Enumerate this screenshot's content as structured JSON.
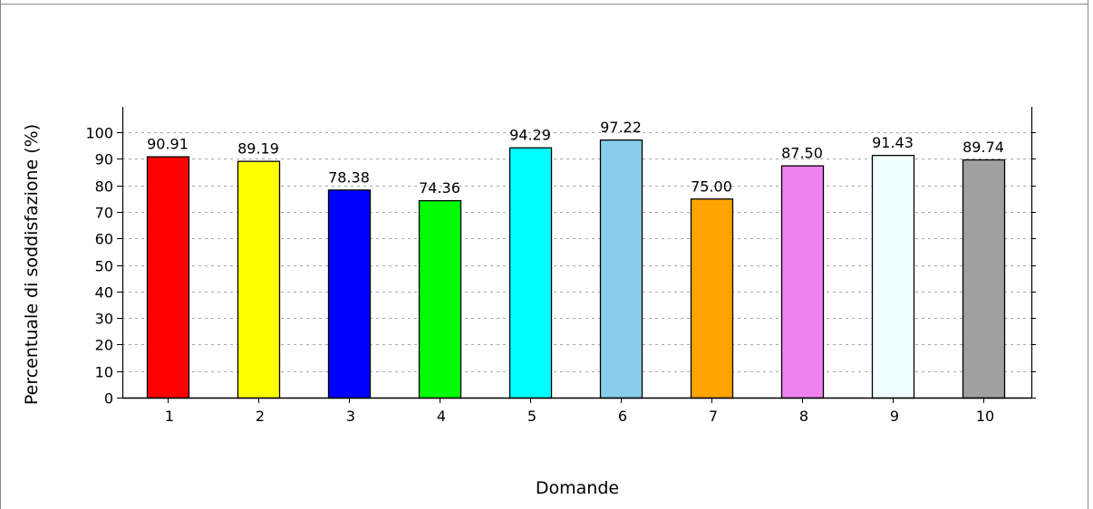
{
  "chart_data": {
    "type": "bar",
    "title": "",
    "xlabel": "Domande",
    "ylabel": "Percentuale di soddisfazione (%)",
    "ylim": [
      0,
      100
    ],
    "yticks": [
      0,
      10,
      20,
      30,
      40,
      50,
      60,
      70,
      80,
      90,
      100
    ],
    "grid": "horizontal dashed",
    "categories": [
      "1",
      "2",
      "3",
      "4",
      "5",
      "6",
      "7",
      "8",
      "9",
      "10"
    ],
    "values": [
      90.91,
      89.19,
      78.38,
      74.36,
      94.29,
      97.22,
      75.0,
      87.5,
      91.43,
      89.74
    ],
    "value_labels": [
      "90.91",
      "89.19",
      "78.38",
      "74.36",
      "94.29",
      "97.22",
      "75.00",
      "87.50",
      "91.43",
      "89.74"
    ],
    "colors": [
      "#ff0000",
      "#ffff00",
      "#0000ff",
      "#00ff00",
      "#00ffff",
      "#87ceeb",
      "#ffa500",
      "#ee82ee",
      "#f0ffff",
      "#a0a0a0"
    ]
  }
}
